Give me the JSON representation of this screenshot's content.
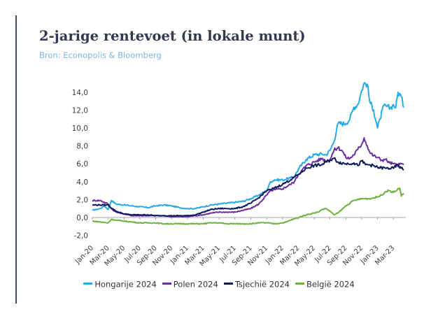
{
  "header": {
    "title": "2-jarige rentevoet (in lokale munt)",
    "subtitle": "Bron: Econopolis & Bloomberg"
  },
  "colors": {
    "title": "#33394f",
    "subtitle": "#7fb5d8",
    "accent_bar": "#3a5066",
    "axis": "#8a8a8a",
    "tick_text": "#3d3d3d"
  },
  "chart_data": {
    "type": "line",
    "title": "2-jarige rentevoet (in lokale munt)",
    "xlabel": "",
    "ylabel": "",
    "ylim": [
      -2.0,
      15.0
    ],
    "y_ticks": [
      "14,0",
      "12,0",
      "10,0",
      "8,0",
      "6,0",
      "4,0",
      "2,0",
      "0,0",
      "-2,0"
    ],
    "y_tick_values": [
      14,
      12,
      10,
      8,
      6,
      4,
      2,
      0,
      -2
    ],
    "x_ticks": [
      "Jan-20",
      "Mar-20",
      "May-20",
      "Jul-20",
      "Sep-20",
      "Nov-20",
      "Jan-21",
      "Mar-21",
      "May-21",
      "Jul-21",
      "Sep-21",
      "Nov-21",
      "Jan-22",
      "Mar-22",
      "May-22",
      "Jul-22",
      "Sep-22",
      "Nov-22",
      "Jan-23",
      "Mar-23"
    ],
    "x_tick_months": [
      0,
      2,
      4,
      6,
      8,
      10,
      12,
      14,
      16,
      18,
      20,
      22,
      24,
      26,
      28,
      30,
      32,
      34,
      36,
      38
    ],
    "x_range_months": [
      0,
      39.3
    ],
    "grid": false,
    "legend_position": "bottom",
    "series": [
      {
        "name": "Hongarije 2024",
        "color": "#29abe2",
        "points": [
          [
            0,
            0.8
          ],
          [
            1,
            1.0
          ],
          [
            1.5,
            1.3
          ],
          [
            2,
            0.9
          ],
          [
            2.4,
            1.9
          ],
          [
            3,
            1.5
          ],
          [
            4,
            1.4
          ],
          [
            5,
            1.3
          ],
          [
            6,
            1.2
          ],
          [
            7,
            1.1
          ],
          [
            8,
            1.3
          ],
          [
            9,
            1.4
          ],
          [
            10,
            1.3
          ],
          [
            11,
            1.1
          ],
          [
            12,
            1.0
          ],
          [
            13,
            1.0
          ],
          [
            14,
            1.2
          ],
          [
            15,
            1.4
          ],
          [
            16,
            1.5
          ],
          [
            17,
            1.6
          ],
          [
            18,
            1.7
          ],
          [
            19,
            1.8
          ],
          [
            20,
            2.1
          ],
          [
            21,
            2.5
          ],
          [
            22,
            3.0
          ],
          [
            22.5,
            4.0
          ],
          [
            23,
            4.2
          ],
          [
            24,
            4.2
          ],
          [
            24.5,
            4.3
          ],
          [
            25,
            4.4
          ],
          [
            25.5,
            4.6
          ],
          [
            26,
            5.4
          ],
          [
            27,
            6.5
          ],
          [
            28,
            7.0
          ],
          [
            29,
            7.1
          ],
          [
            29.5,
            7.0
          ],
          [
            30,
            7.5
          ],
          [
            30.5,
            8.5
          ],
          [
            31,
            10.5
          ],
          [
            32,
            10.5
          ],
          [
            32.5,
            11.0
          ],
          [
            33,
            12.3
          ],
          [
            33.5,
            12.6
          ],
          [
            34,
            14.2
          ],
          [
            34.3,
            15.0
          ],
          [
            34.7,
            14.9
          ],
          [
            35,
            13.0
          ],
          [
            35.5,
            12.0
          ],
          [
            36,
            10.0
          ],
          [
            36.3,
            11.0
          ],
          [
            36.8,
            12.5
          ],
          [
            37.2,
            12.4
          ],
          [
            37.6,
            12.2
          ],
          [
            38,
            12.6
          ],
          [
            38.3,
            12.3
          ],
          [
            38.6,
            14.0
          ],
          [
            39,
            13.5
          ],
          [
            39.3,
            12.3
          ]
        ]
      },
      {
        "name": "Polen 2024",
        "color": "#6d2ea0",
        "points": [
          [
            0,
            1.9
          ],
          [
            1,
            1.9
          ],
          [
            2,
            1.5
          ],
          [
            2.5,
            0.9
          ],
          [
            3,
            0.6
          ],
          [
            4,
            0.4
          ],
          [
            5,
            0.2
          ],
          [
            6,
            0.2
          ],
          [
            7,
            0.2
          ],
          [
            8,
            0.2
          ],
          [
            9,
            0.2
          ],
          [
            10,
            0.1
          ],
          [
            11,
            0.1
          ],
          [
            12,
            0.1
          ],
          [
            13,
            0.2
          ],
          [
            14,
            0.3
          ],
          [
            15,
            0.5
          ],
          [
            16,
            0.6
          ],
          [
            17,
            0.6
          ],
          [
            18,
            0.6
          ],
          [
            19,
            0.8
          ],
          [
            20,
            1.0
          ],
          [
            21,
            1.5
          ],
          [
            22,
            2.5
          ],
          [
            22.5,
            3.0
          ],
          [
            23,
            3.1
          ],
          [
            24,
            3.2
          ],
          [
            25,
            3.7
          ],
          [
            25.5,
            4.0
          ],
          [
            26,
            4.8
          ],
          [
            27,
            5.8
          ],
          [
            28,
            6.2
          ],
          [
            29,
            6.6
          ],
          [
            29.5,
            6.3
          ],
          [
            30,
            6.5
          ],
          [
            30.5,
            7.5
          ],
          [
            31,
            7.8
          ],
          [
            31.5,
            7.5
          ],
          [
            32,
            6.7
          ],
          [
            32.5,
            6.6
          ],
          [
            33,
            7.0
          ],
          [
            33.5,
            7.6
          ],
          [
            34,
            8.2
          ],
          [
            34.3,
            8.9
          ],
          [
            34.7,
            8.0
          ],
          [
            35,
            7.3
          ],
          [
            35.5,
            6.9
          ],
          [
            36,
            6.7
          ],
          [
            36.5,
            6.4
          ],
          [
            37,
            6.5
          ],
          [
            37.5,
            6.1
          ],
          [
            38,
            6.0
          ],
          [
            38.5,
            5.8
          ],
          [
            39,
            6.0
          ],
          [
            39.3,
            5.9
          ]
        ]
      },
      {
        "name": "Tsjechië 2024",
        "color": "#0e1a5c",
        "points": [
          [
            0,
            1.4
          ],
          [
            1,
            1.4
          ],
          [
            2,
            1.4
          ],
          [
            2.5,
            1.0
          ],
          [
            3,
            0.7
          ],
          [
            4,
            0.4
          ],
          [
            5,
            0.3
          ],
          [
            6,
            0.3
          ],
          [
            7,
            0.3
          ],
          [
            8,
            0.2
          ],
          [
            9,
            0.2
          ],
          [
            10,
            0.2
          ],
          [
            11,
            0.2
          ],
          [
            12,
            0.2
          ],
          [
            13,
            0.3
          ],
          [
            14,
            0.6
          ],
          [
            15,
            0.9
          ],
          [
            16,
            1.0
          ],
          [
            17,
            1.0
          ],
          [
            18,
            1.0
          ],
          [
            19,
            1.2
          ],
          [
            20,
            1.6
          ],
          [
            21,
            2.2
          ],
          [
            22,
            3.0
          ],
          [
            22.5,
            3.1
          ],
          [
            23,
            3.3
          ],
          [
            24,
            3.7
          ],
          [
            25,
            4.2
          ],
          [
            26,
            4.8
          ],
          [
            27,
            5.5
          ],
          [
            28,
            5.8
          ],
          [
            29,
            5.9
          ],
          [
            29.5,
            6.2
          ],
          [
            30,
            6.4
          ],
          [
            30.5,
            6.6
          ],
          [
            31,
            6.2
          ],
          [
            32,
            6.0
          ],
          [
            33,
            6.1
          ],
          [
            33.5,
            5.8
          ],
          [
            34,
            6.3
          ],
          [
            34.5,
            5.9
          ],
          [
            35,
            5.9
          ],
          [
            36,
            5.6
          ],
          [
            37,
            5.5
          ],
          [
            38,
            5.5
          ],
          [
            38.5,
            5.9
          ],
          [
            39,
            5.5
          ],
          [
            39.3,
            5.3
          ]
        ]
      },
      {
        "name": "België 2024",
        "color": "#6db33f",
        "points": [
          [
            0,
            -0.4
          ],
          [
            1,
            -0.5
          ],
          [
            2,
            -0.6
          ],
          [
            2.4,
            -0.2
          ],
          [
            3,
            -0.3
          ],
          [
            4,
            -0.4
          ],
          [
            5,
            -0.5
          ],
          [
            6,
            -0.6
          ],
          [
            7,
            -0.6
          ],
          [
            8,
            -0.6
          ],
          [
            9,
            -0.7
          ],
          [
            10,
            -0.7
          ],
          [
            11,
            -0.7
          ],
          [
            12,
            -0.7
          ],
          [
            13,
            -0.7
          ],
          [
            14,
            -0.7
          ],
          [
            15,
            -0.6
          ],
          [
            16,
            -0.6
          ],
          [
            17,
            -0.7
          ],
          [
            18,
            -0.7
          ],
          [
            19,
            -0.7
          ],
          [
            20,
            -0.7
          ],
          [
            21,
            -0.6
          ],
          [
            22,
            -0.6
          ],
          [
            23,
            -0.7
          ],
          [
            24,
            -0.6
          ],
          [
            24.5,
            -0.5
          ],
          [
            25,
            -0.3
          ],
          [
            26,
            0.0
          ],
          [
            27,
            0.3
          ],
          [
            28,
            0.5
          ],
          [
            28.5,
            0.6
          ],
          [
            29,
            0.9
          ],
          [
            29.5,
            1.0
          ],
          [
            30,
            0.7
          ],
          [
            30.5,
            0.3
          ],
          [
            31,
            0.5
          ],
          [
            32,
            1.3
          ],
          [
            33,
            1.9
          ],
          [
            33.5,
            2.0
          ],
          [
            34,
            2.1
          ],
          [
            35,
            2.1
          ],
          [
            36,
            2.3
          ],
          [
            36.5,
            2.5
          ],
          [
            37,
            2.9
          ],
          [
            37.5,
            3.0
          ],
          [
            38,
            2.8
          ],
          [
            38.5,
            3.1
          ],
          [
            38.8,
            3.3
          ],
          [
            39,
            2.4
          ],
          [
            39.3,
            2.7
          ]
        ]
      }
    ]
  }
}
